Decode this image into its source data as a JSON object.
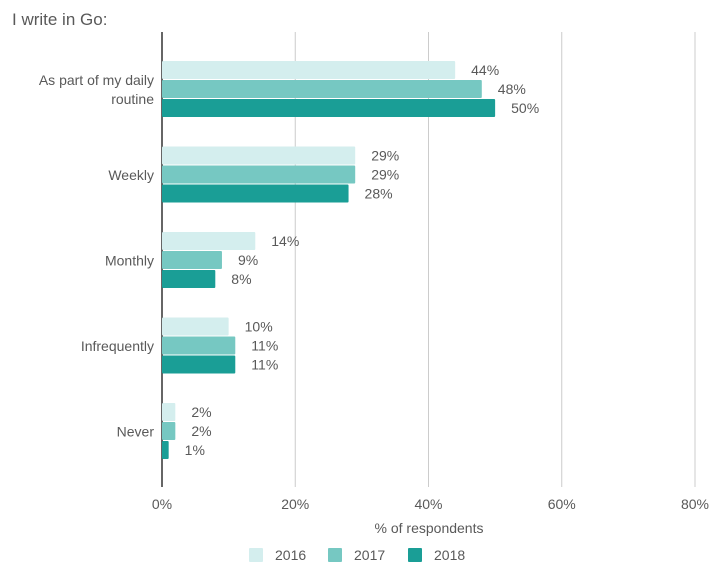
{
  "chart_data": {
    "type": "bar",
    "orientation": "horizontal",
    "title": "I write in Go:",
    "xlabel": "% of respondents",
    "categories": [
      "As part of my daily routine",
      "Weekly",
      "Monthly",
      "Infrequently",
      "Never"
    ],
    "category_lines": [
      [
        "As part of my daily",
        "routine"
      ],
      [
        "Weekly"
      ],
      [
        "Monthly"
      ],
      [
        "Infrequently"
      ],
      [
        "Never"
      ]
    ],
    "series": [
      {
        "name": "2016",
        "color": "#d4eeee",
        "values": [
          44,
          29,
          14,
          10,
          2
        ]
      },
      {
        "name": "2017",
        "color": "#76c8c2",
        "values": [
          48,
          29,
          9,
          11,
          2
        ]
      },
      {
        "name": "2018",
        "color": "#1a9e96",
        "values": [
          50,
          28,
          8,
          11,
          1
        ]
      }
    ],
    "xlim": [
      0,
      80
    ],
    "xticks": [
      "0%",
      "20%",
      "40%",
      "60%",
      "80%"
    ],
    "value_suffix": "%",
    "grid": true,
    "legend_position": "bottom"
  }
}
